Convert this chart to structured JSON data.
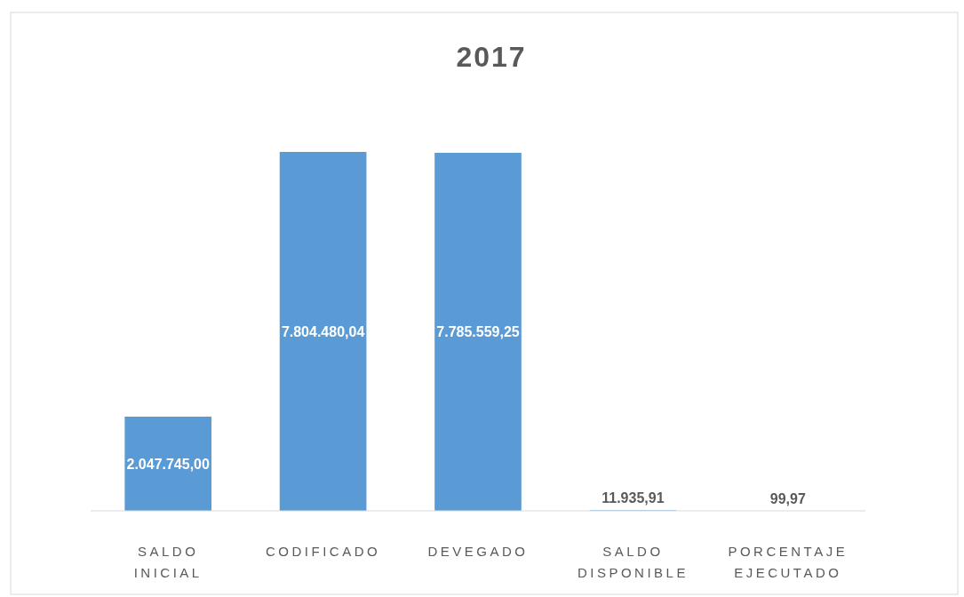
{
  "chart_data": {
    "type": "bar",
    "title": "2017",
    "categories": [
      "SALDO INICIAL",
      "CODIFICADO",
      "DEVEGADO",
      "SALDO DISPONIBLE",
      "PORCENTAJE EJECUTADO"
    ],
    "values": [
      2047745.0,
      7804480.04,
      7785559.25,
      11935.91,
      99.97
    ],
    "color": "#5b9bd5",
    "value_labels": [
      "2.047.745,00",
      "7.804.480,04",
      "7.785.559,25",
      "11.935,91",
      "99,97"
    ]
  }
}
